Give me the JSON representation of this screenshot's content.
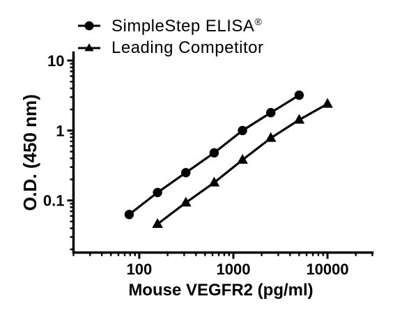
{
  "chart_data": {
    "type": "line",
    "title": "",
    "xlabel": "Mouse VEGFR2 (pg/ml)",
    "ylabel": "O.D. (450 nm)",
    "x_scale": "log",
    "y_scale": "log",
    "xlim": [
      20,
      30000
    ],
    "ylim": [
      0.018,
      13
    ],
    "x_major_ticks": [
      100,
      1000,
      10000
    ],
    "x_major_tick_labels": [
      "100",
      "1000",
      "10000"
    ],
    "y_major_ticks": [
      10,
      1,
      0.1
    ],
    "y_major_tick_labels": [
      "10",
      "1",
      "0.1"
    ],
    "grid": false,
    "legend_position": "top-left",
    "background": "#ffffff",
    "axis_color": "#000000",
    "series": [
      {
        "name": "SimpleStep ELISA",
        "name_suffix": "®",
        "marker": "circle",
        "color": "#000000",
        "x": [
          78.1,
          156.3,
          312.5,
          625,
          1250,
          2500,
          5000
        ],
        "y": [
          0.063,
          0.13,
          0.25,
          0.48,
          1.0,
          1.8,
          3.2
        ]
      },
      {
        "name": "Leading Competitor",
        "name_suffix": "",
        "marker": "triangle",
        "color": "#000000",
        "x": [
          156.3,
          312.5,
          625,
          1250,
          2500,
          5000,
          10000
        ],
        "y": [
          0.046,
          0.093,
          0.18,
          0.38,
          0.78,
          1.42,
          2.4
        ]
      }
    ]
  }
}
